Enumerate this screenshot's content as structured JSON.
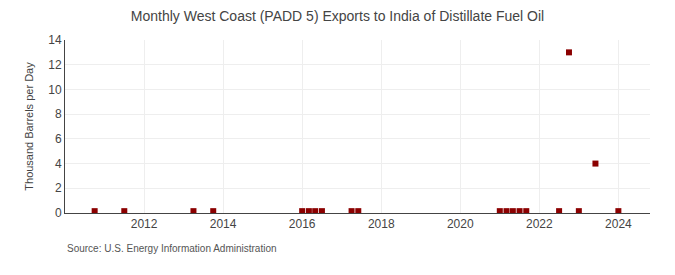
{
  "chart_data": {
    "type": "scatter",
    "title": "Monthly West Coast (PADD 5) Exports to India of Distillate Fuel Oil",
    "ylabel": "Thousand Barrels per Day",
    "annotations": [
      "Source: U.S. Energy Information Administration"
    ],
    "x": [
      2010.75,
      2011.5,
      2013.25,
      2013.75,
      2016.0,
      2016.17,
      2016.33,
      2016.5,
      2017.25,
      2017.42,
      2021.0,
      2021.17,
      2021.33,
      2021.5,
      2021.67,
      2022.5,
      2023.0,
      2022.75,
      2023.42,
      2024.0
    ],
    "values": [
      0.15,
      0.15,
      0.15,
      0.15,
      0.15,
      0.15,
      0.15,
      0.15,
      0.15,
      0.15,
      0.15,
      0.15,
      0.15,
      0.15,
      0.15,
      0.15,
      0.15,
      13.0,
      4.0,
      0.15
    ],
    "color": "#8b0000",
    "marker": "square",
    "xlim": [
      2010.0,
      2024.8
    ],
    "ylim": [
      0,
      14
    ],
    "xticks": [
      2012,
      2014,
      2016,
      2018,
      2020,
      2022,
      2024
    ],
    "yticks": [
      0,
      2,
      4,
      6,
      8,
      10,
      12,
      14
    ],
    "grid": true
  }
}
